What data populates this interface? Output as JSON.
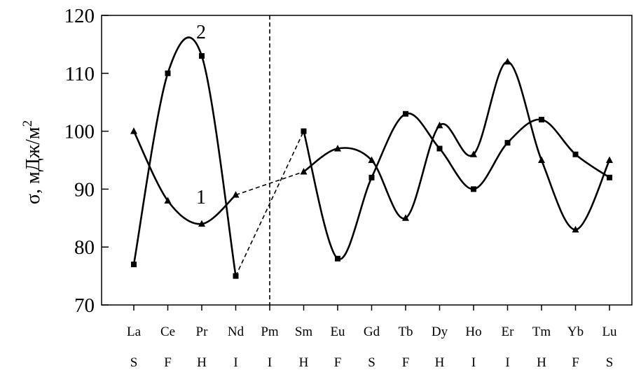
{
  "chart_data": {
    "type": "line",
    "ylabel": "σ, мДж/м",
    "ylabel_sup": "2",
    "ylim": [
      70,
      120
    ],
    "yticks": [
      70,
      80,
      90,
      100,
      110,
      120
    ],
    "yticklabels": [
      "70",
      "80",
      "90",
      "100",
      "110",
      "120"
    ],
    "categories": [
      "La",
      "Ce",
      "Pr",
      "Nd",
      "Pm",
      "Sm",
      "Eu",
      "Gd",
      "Tb",
      "Dy",
      "Ho",
      "Er",
      "Tm",
      "Yb",
      "Lu"
    ],
    "subcategories": [
      "S",
      "F",
      "H",
      "I",
      "I",
      "H",
      "F",
      "S",
      "F",
      "H",
      "I",
      "I",
      "H",
      "F",
      "S"
    ],
    "grid": false,
    "legend": "none",
    "series": [
      {
        "name": "1",
        "marker": "triangle",
        "values": [
          100,
          88,
          84,
          89,
          null,
          93,
          97,
          95,
          85,
          101,
          96,
          112,
          95,
          83,
          95
        ]
      },
      {
        "name": "2",
        "marker": "square",
        "values": [
          77,
          110,
          113,
          75,
          null,
          100,
          78,
          92,
          103,
          97,
          90,
          98,
          102,
          96,
          92
        ]
      }
    ],
    "interpolated_gap": {
      "category": "Pm",
      "style": "dashed"
    },
    "vertical_divider": {
      "category": "Pm",
      "style": "dashed"
    }
  }
}
